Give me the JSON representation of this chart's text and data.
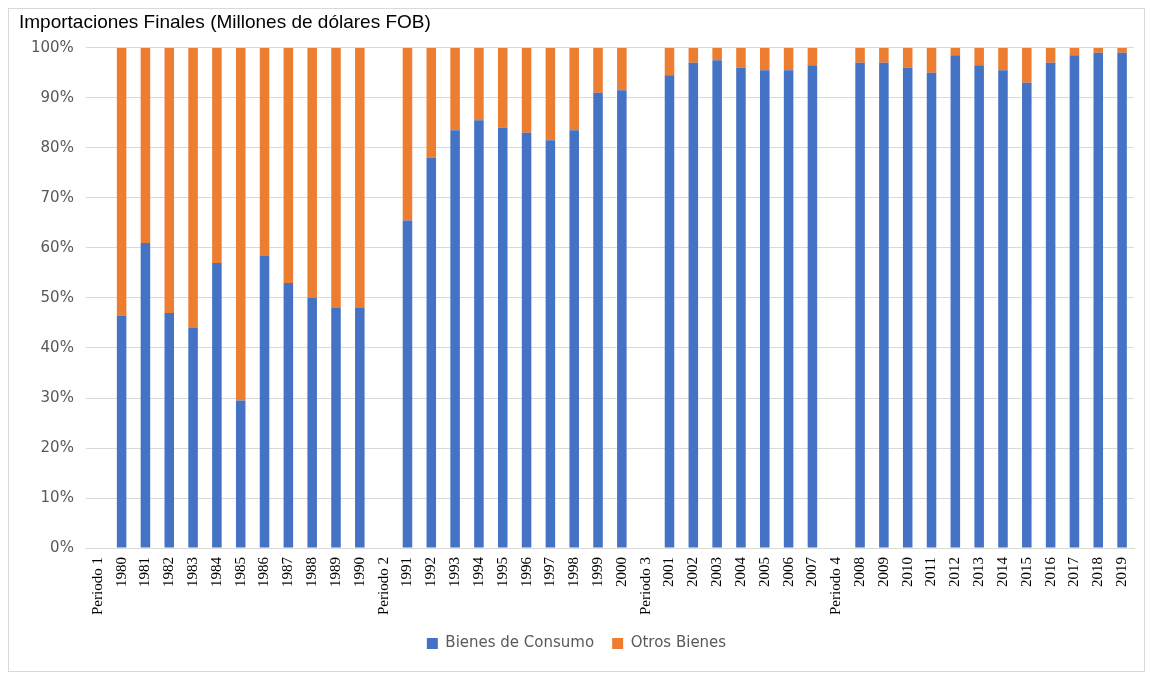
{
  "chart_data": {
    "type": "bar",
    "title": "Importaciones Finales (Millones de dólares FOB)",
    "stacked": true,
    "grid": "y",
    "legend": "bottom",
    "categories": [
      "Periodo 1",
      "1980",
      "1981",
      "1982",
      "1983",
      "1984",
      "1985",
      "1986",
      "1987",
      "1988",
      "1989",
      "1990",
      "Periodo 2",
      "1991",
      "1992",
      "1993",
      "1994",
      "1995",
      "1996",
      "1997",
      "1998",
      "1999",
      "2000",
      "Periodo 3",
      "2001",
      "2002",
      "2003",
      "2004",
      "2005",
      "2006",
      "2007",
      "Periodo 4",
      "2008",
      "2009",
      "2010",
      "2011",
      "2012",
      "2013",
      "2014",
      "2015",
      "2016",
      "2017",
      "2018",
      "2019"
    ],
    "ylim": [
      0,
      100
    ],
    "yticks": [
      {
        "value": 0,
        "label": "0%"
      },
      {
        "value": 10,
        "label": "10%"
      },
      {
        "value": 20,
        "label": "20%"
      },
      {
        "value": 30,
        "label": "30%"
      },
      {
        "value": 40,
        "label": "40%"
      },
      {
        "value": 50,
        "label": "50%"
      },
      {
        "value": 60,
        "label": "60%"
      },
      {
        "value": 70,
        "label": "70%"
      },
      {
        "value": 80,
        "label": "80%"
      },
      {
        "value": 90,
        "label": "90%"
      },
      {
        "value": 100,
        "label": "100%"
      }
    ],
    "series": [
      {
        "name": "Bienes de Consumo",
        "color": "#4472c4",
        "values": [
          null,
          46.5,
          61,
          47,
          44,
          57,
          29.5,
          58.5,
          53,
          50,
          48,
          48,
          null,
          65.5,
          78,
          83.5,
          85.5,
          84,
          83,
          81.5,
          83.5,
          91,
          91.5,
          null,
          94.5,
          97,
          97.5,
          96,
          95.5,
          95.5,
          96.5,
          null,
          97,
          97,
          96,
          95,
          98.5,
          96.5,
          95.5,
          93,
          97,
          98.5,
          99,
          99
        ]
      },
      {
        "name": "Otros Bienes",
        "color": "#ed7d31",
        "values": [
          null,
          53.5,
          39,
          53,
          56,
          43,
          70.5,
          41.5,
          47,
          50,
          52,
          52,
          null,
          34.5,
          22,
          16.5,
          14.5,
          16,
          17,
          18.5,
          16.5,
          9,
          8.5,
          null,
          5.5,
          3,
          2.5,
          4,
          4.5,
          4.5,
          3.5,
          null,
          3,
          3,
          4,
          5,
          1.5,
          3.5,
          4.5,
          7,
          3,
          1.5,
          1,
          1
        ]
      }
    ]
  }
}
